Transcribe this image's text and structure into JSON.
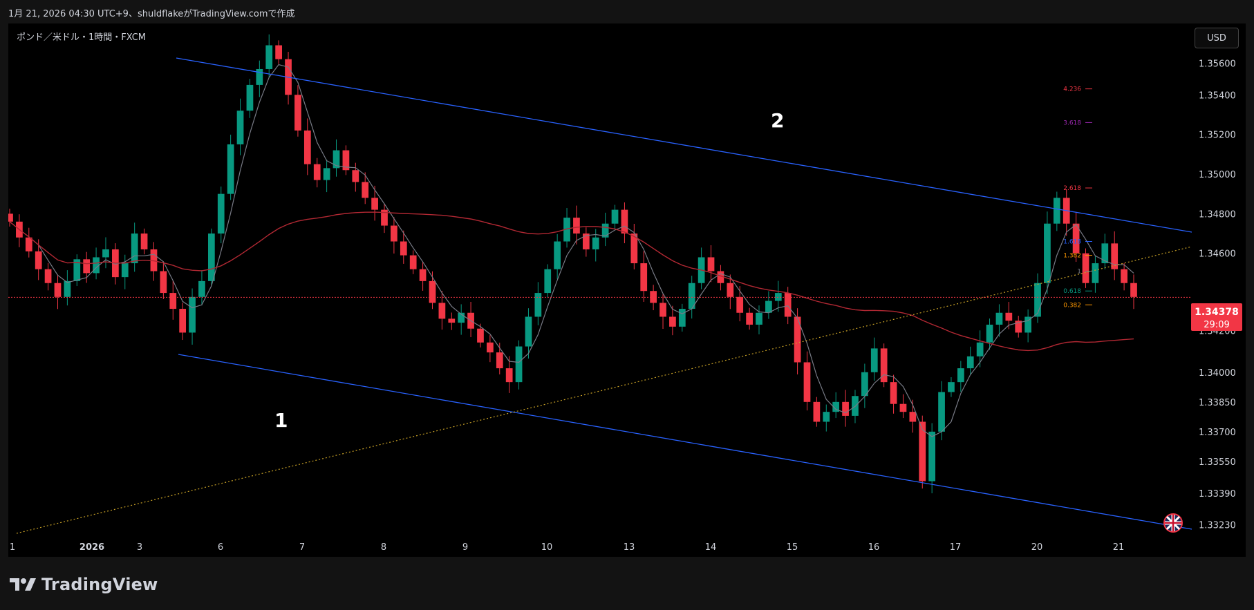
{
  "header": {
    "text": "1月 21, 2026 04:30 UTC+9、shuldflakeがTradingView.comで作成"
  },
  "chart_title": "ポンド／米ドル・1時間・FXCM",
  "currency_button": "USD",
  "brand": "TradingView",
  "price_badge": {
    "price": "1.34378",
    "countdown": "29:09",
    "color": "#f23645"
  },
  "annotations": {
    "label_1": "1",
    "label_2": "2"
  },
  "colors": {
    "up": "#089981",
    "down": "#f23645",
    "channel": "#2962ff",
    "ma_slow": "#b22833",
    "ma_fast": "#787b86",
    "trend": "#c9a227"
  },
  "chart_data": {
    "type": "line",
    "title": "ポンド／米ドル・1時間・FXCM",
    "x_ticks": [
      "1",
      "2026",
      "3",
      "6",
      "7",
      "8",
      "9",
      "10",
      "13",
      "14",
      "15",
      "16",
      "17",
      "20",
      "21"
    ],
    "y_ticks": [
      1.3556,
      1.354,
      1.352,
      1.35,
      1.348,
      1.346,
      1.3421,
      1.34,
      1.3385,
      1.337,
      1.3355,
      1.3339,
      1.3323
    ],
    "y_tick_labels": [
      "1.35600",
      "1.35400",
      "1.35200",
      "1.35000",
      "1.34800",
      "1.34600",
      "1.34200",
      "1.34000",
      "1.33850",
      "1.33700",
      "1.33550",
      "1.33390",
      "1.33230"
    ],
    "ylim": [
      1.3318,
      1.3576
    ],
    "current_price": 1.34378,
    "fib_levels": [
      {
        "label": "4.236",
        "value": 1.3543,
        "color": "#f23645"
      },
      {
        "label": "3.618",
        "value": 1.3526,
        "color": "#9c27b0"
      },
      {
        "label": "2.618",
        "value": 1.3493,
        "color": "#f23645"
      },
      {
        "label": "1.618",
        "value": 1.3466,
        "color": "#2962ff"
      },
      {
        "label": "1.382",
        "value": 1.3459,
        "color": "#ff9800"
      },
      {
        "label": "1",
        "value": 1.3451,
        "color": "#787b86"
      },
      {
        "label": "0.618",
        "value": 1.3441,
        "color": "#089981"
      },
      {
        "label": "0.382",
        "value": 1.3434,
        "color": "#ff9800"
      }
    ],
    "candles_approx_close": [
      1.3476,
      1.3468,
      1.3461,
      1.3452,
      1.3445,
      1.3438,
      1.3446,
      1.3457,
      1.345,
      1.3458,
      1.3462,
      1.3448,
      1.3455,
      1.347,
      1.3462,
      1.3451,
      1.344,
      1.3432,
      1.342,
      1.3438,
      1.3446,
      1.347,
      1.349,
      1.3515,
      1.3532,
      1.3545,
      1.3553,
      1.3565,
      1.3558,
      1.354,
      1.3522,
      1.3505,
      1.3497,
      1.3503,
      1.3512,
      1.3502,
      1.3496,
      1.3488,
      1.3482,
      1.3474,
      1.3466,
      1.3459,
      1.3452,
      1.3446,
      1.3435,
      1.3427,
      1.3425,
      1.343,
      1.3422,
      1.3415,
      1.341,
      1.3402,
      1.3395,
      1.3413,
      1.3428,
      1.344,
      1.3452,
      1.3466,
      1.3478,
      1.347,
      1.3462,
      1.3468,
      1.3475,
      1.3482,
      1.347,
      1.3455,
      1.3441,
      1.3435,
      1.3428,
      1.3423,
      1.3432,
      1.3445,
      1.3458,
      1.3451,
      1.3445,
      1.3438,
      1.343,
      1.3424,
      1.343,
      1.3436,
      1.344,
      1.3428,
      1.3405,
      1.3385,
      1.3375,
      1.338,
      1.3385,
      1.3378,
      1.3388,
      1.34,
      1.3412,
      1.3395,
      1.3384,
      1.338,
      1.3375,
      1.3345,
      1.337,
      1.339,
      1.3395,
      1.3402,
      1.3408,
      1.3415,
      1.3424,
      1.343,
      1.3426,
      1.342,
      1.3428,
      1.3445,
      1.3475,
      1.3488,
      1.3475,
      1.346,
      1.3445,
      1.3455,
      1.3465,
      1.3452,
      1.3445,
      1.3438
    ]
  }
}
